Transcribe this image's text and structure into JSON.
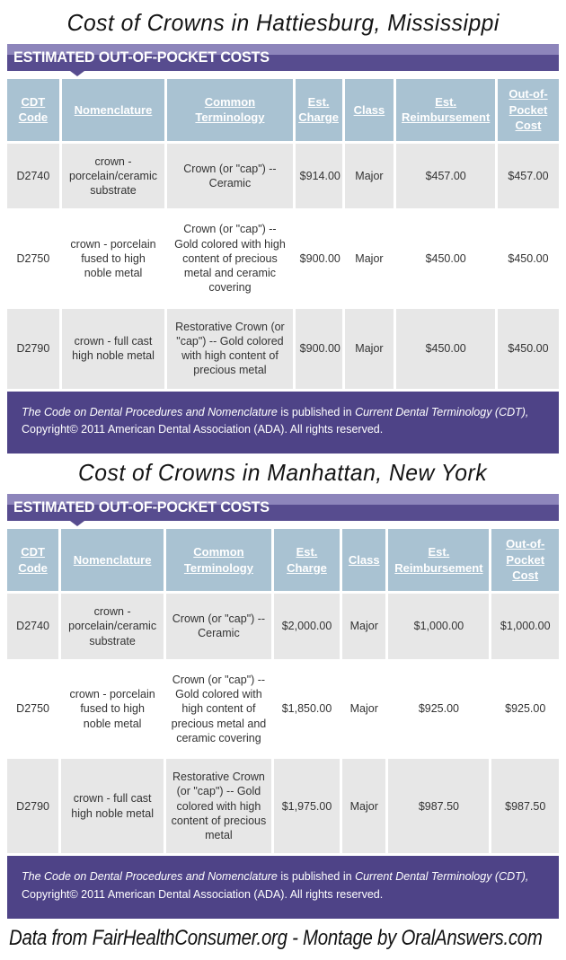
{
  "banner_label": "ESTIMATED OUT-OF-POCKET COSTS",
  "columns": [
    "CDT Code",
    "Nomenclature",
    "Common Terminology",
    "Est. Charge",
    "Class",
    "Est. Reimbursement",
    "Out-of-Pocket Cost"
  ],
  "sections": [
    {
      "title": "Cost of Crowns in Hattiesburg, Mississippi",
      "rows": [
        [
          "D2740",
          "crown - porcelain/ceramic substrate",
          "Crown (or \"cap\") -- Ceramic",
          "$914.00",
          "Major",
          "$457.00",
          "$457.00"
        ],
        [
          "D2750",
          "crown - porcelain fused to high noble metal",
          "Crown (or \"cap\") -- Gold colored with high content of precious metal and ceramic covering",
          "$900.00",
          "Major",
          "$450.00",
          "$450.00"
        ],
        [
          "D2790",
          "crown - full cast high noble metal",
          "Restorative Crown (or \"cap\") -- Gold colored with high content of precious metal",
          "$900.00",
          "Major",
          "$450.00",
          "$450.00"
        ]
      ]
    },
    {
      "title": "Cost of Crowns in Manhattan, New York",
      "rows": [
        [
          "D2740",
          "crown - porcelain/ceramic substrate",
          "Crown (or \"cap\") -- Ceramic",
          "$2,000.00",
          "Major",
          "$1,000.00",
          "$1,000.00"
        ],
        [
          "D2750",
          "crown - porcelain fused to high noble metal",
          "Crown (or \"cap\") -- Gold colored with high content of precious metal and ceramic covering",
          "$1,850.00",
          "Major",
          "$925.00",
          "$925.00"
        ],
        [
          "D2790",
          "crown - full cast high noble metal",
          "Restorative Crown (or \"cap\") -- Gold colored with high content of precious metal",
          "$1,975.00",
          "Major",
          "$987.50",
          "$987.50"
        ]
      ]
    }
  ],
  "note": {
    "italic_1": "The Code on Dental Procedures and Nomenclature",
    "mid": " is published in ",
    "italic_2": "Current Dental Terminology (CDT),",
    "line_2": "Copyright© 2011 American Dental Association (ADA). All rights reserved."
  },
  "caption": "Data from FairHealthConsumer.org - Montage by OralAnswers.com",
  "colors": {
    "banner_light": "#8d85bb",
    "banner_dark": "#574c8f",
    "note_bg": "#4e4387",
    "header_cell_bg": "#a9c2d2",
    "row_gray": "#e7e7e7"
  }
}
